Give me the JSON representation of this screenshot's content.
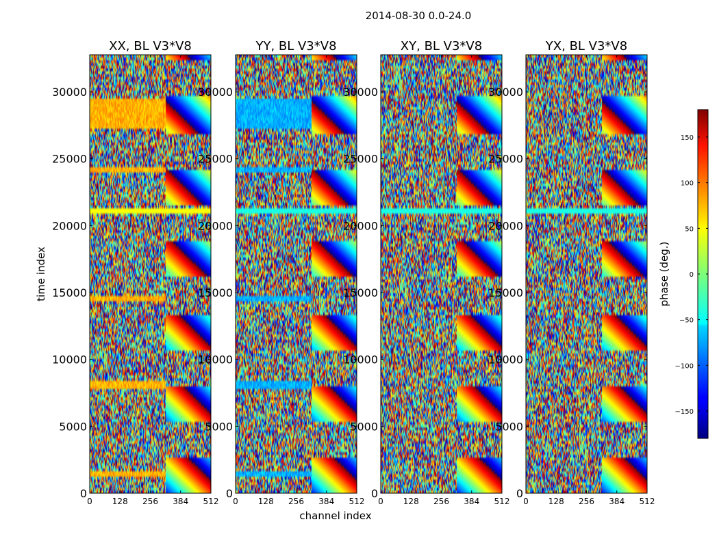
{
  "figure_title": "2014-08-30 0.0-24.0",
  "chart_data": {
    "type": "heatmap",
    "suptitle": "2014-08-30 0.0-24.0",
    "xlabel": "channel index",
    "ylabel": "time index",
    "xlim": [
      0,
      512
    ],
    "ylim": [
      0,
      32768
    ],
    "x_ticks": [
      0,
      128,
      256,
      384,
      512
    ],
    "y_ticks": [
      0,
      5000,
      10000,
      15000,
      20000,
      25000,
      30000
    ],
    "panels": [
      {
        "title": "XX, BL V3*V8",
        "pol": "XX"
      },
      {
        "title": "YY, BL V3*V8",
        "pol": "YY"
      },
      {
        "title": "XY, BL V3*V8",
        "pol": "XY"
      },
      {
        "title": "YX, BL V3*V8",
        "pol": "YX"
      }
    ],
    "colorbar": {
      "label": "phase (deg.)",
      "range": [
        -180,
        180
      ],
      "ticks": [
        -150,
        -100,
        -50,
        0,
        50,
        100,
        150
      ],
      "colormap": "jet"
    }
  }
}
